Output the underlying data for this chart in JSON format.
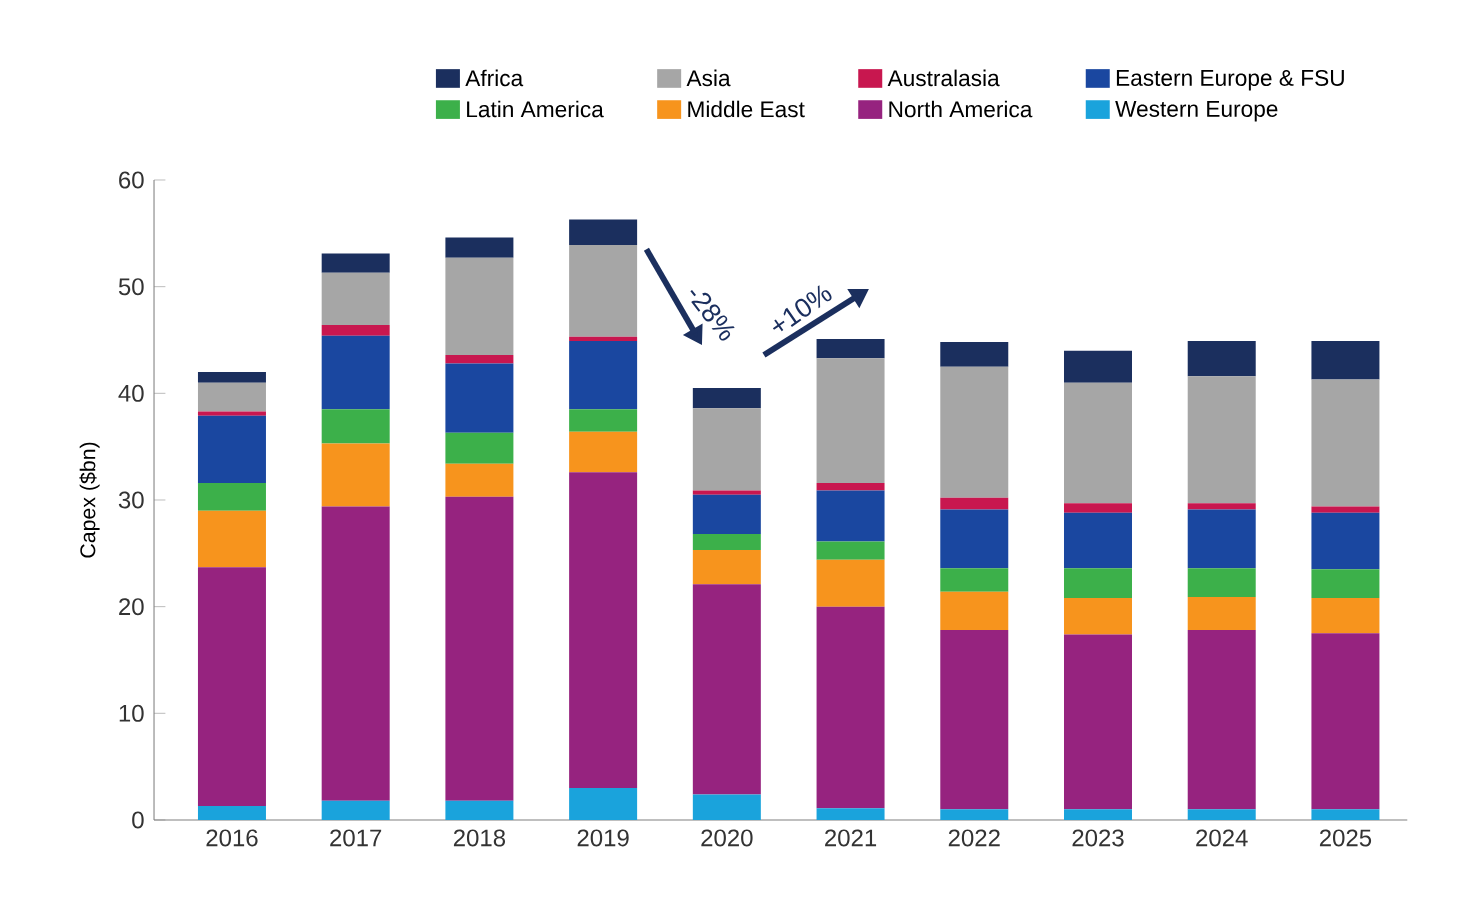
{
  "chart_data": {
    "type": "bar",
    "stacked": true,
    "ylabel": "Capex ($bn)",
    "categories": [
      "2016",
      "2017",
      "2018",
      "2019",
      "2020",
      "2021",
      "2022",
      "2023",
      "2024",
      "2025"
    ],
    "ylim": [
      0,
      60
    ],
    "yticks": [
      0,
      10,
      20,
      30,
      40,
      50,
      60
    ],
    "grid": false,
    "legend": "top",
    "annotations": [
      "-28%",
      "+10%"
    ],
    "series": [
      {
        "name": "Western Europe",
        "color": "#1aa3dc",
        "values": [
          1.3,
          1.8,
          1.8,
          3.0,
          2.4,
          1.1,
          1.0,
          1.0,
          1.0,
          1.0
        ]
      },
      {
        "name": "North America",
        "color": "#96237f",
        "values": [
          22.4,
          27.6,
          28.5,
          29.6,
          19.7,
          18.9,
          16.8,
          16.4,
          16.8,
          16.5
        ]
      },
      {
        "name": "Middle East",
        "color": "#f7941d",
        "values": [
          5.3,
          5.9,
          3.1,
          3.8,
          3.2,
          4.4,
          3.6,
          3.4,
          3.1,
          3.3
        ]
      },
      {
        "name": "Latin America",
        "color": "#3cb04a",
        "values": [
          2.6,
          3.2,
          2.9,
          2.1,
          1.5,
          1.7,
          2.2,
          2.8,
          2.7,
          2.7
        ]
      },
      {
        "name": "Eastern Europe & FSU",
        "color": "#1a47a0",
        "values": [
          6.3,
          6.9,
          6.5,
          6.4,
          3.7,
          4.8,
          5.5,
          5.2,
          5.5,
          5.3
        ]
      },
      {
        "name": "Australasia",
        "color": "#c8174f",
        "values": [
          0.4,
          1.0,
          0.8,
          0.4,
          0.4,
          0.7,
          1.1,
          0.9,
          0.6,
          0.6
        ]
      },
      {
        "name": "Asia",
        "color": "#a6a6a6",
        "values": [
          2.7,
          4.9,
          9.1,
          8.6,
          7.7,
          11.7,
          12.3,
          11.3,
          11.9,
          11.9
        ]
      },
      {
        "name": "Africa",
        "color": "#1b2f5e",
        "values": [
          1.0,
          1.8,
          1.9,
          2.4,
          1.9,
          1.8,
          2.3,
          3.0,
          3.3,
          3.6
        ]
      }
    ]
  }
}
